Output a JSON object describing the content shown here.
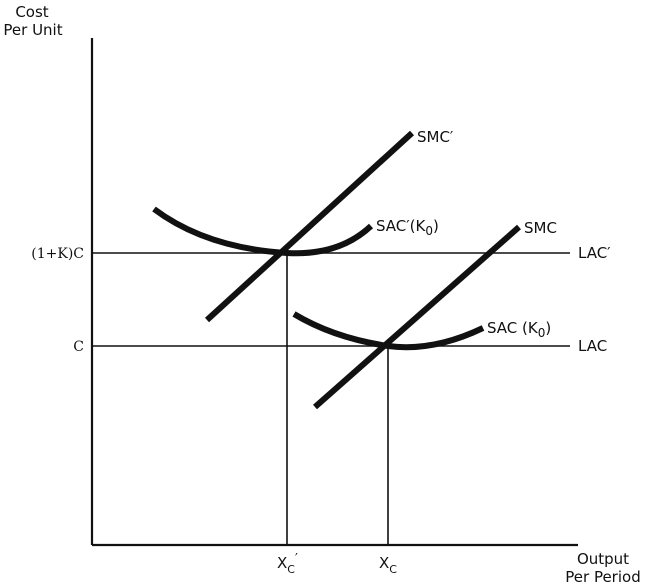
{
  "axes": {
    "y_label_line1": "Cost",
    "y_label_line2": "Per Unit",
    "x_label_line1": "Output",
    "x_label_line2": "Per Period"
  },
  "y_ticks": {
    "upper": "(1+K)C",
    "lower": "C"
  },
  "x_ticks": {
    "left_main": "X",
    "left_sub": "C",
    "left_prime": "′",
    "right_main": "X",
    "right_sub": "C"
  },
  "curves": {
    "smc_prime": "SMC′",
    "smc": "SMC",
    "sac_prime_main": "SAC′(K",
    "sac_prime_sub": "0",
    "sac_prime_close": ")",
    "sac_main": "SAC (K",
    "sac_sub": "0",
    "sac_close": ")",
    "lac_prime": "LAC′",
    "lac": "LAC"
  }
}
